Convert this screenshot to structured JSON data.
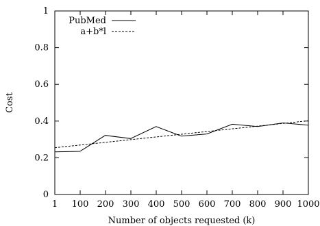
{
  "chart_data": {
    "type": "line",
    "xlabel": "Number of objects requested (k)",
    "ylabel": "Cost",
    "x_ticks": [
      "1",
      "100",
      "200",
      "300",
      "400",
      "500",
      "600",
      "700",
      "800",
      "900",
      "1000"
    ],
    "y_ticks": [
      "0",
      "0.2",
      "0.4",
      "0.6",
      "0.8",
      "1"
    ],
    "xlim": [
      1,
      1000
    ],
    "ylim": [
      0,
      1
    ],
    "grid": false,
    "legend_position": "top-left",
    "series": [
      {
        "name": "PubMed",
        "style": "solid",
        "x": [
          1,
          100,
          200,
          300,
          400,
          500,
          600,
          700,
          800,
          900,
          1000
        ],
        "y": [
          0.232,
          0.235,
          0.322,
          0.305,
          0.37,
          0.318,
          0.33,
          0.383,
          0.37,
          0.39,
          0.378
        ]
      },
      {
        "name": "a+b*l",
        "style": "dashed",
        "x": [
          1,
          1000
        ],
        "y": [
          0.255,
          0.402
        ]
      }
    ]
  }
}
